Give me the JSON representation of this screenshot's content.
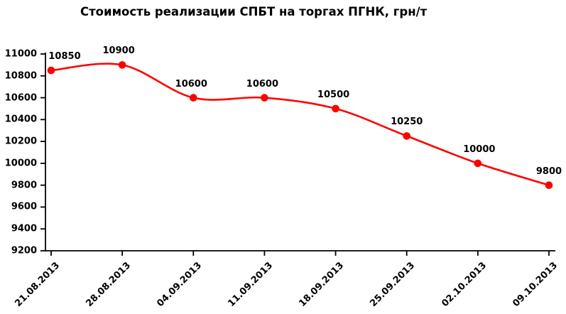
{
  "page": {
    "background": "#FFFFFF"
  },
  "chart_data": {
    "type": "line",
    "title": "Стоимость реализации СПБТ на торгах ПГНК, грн/т",
    "categories": [
      "21.08.2013",
      "28.08.2013",
      "04.09.2013",
      "11.09.2013",
      "18.09.2013",
      "25.09.2013",
      "02.10.2013",
      "09.10.2013"
    ],
    "series": [
      {
        "name": "СПБТ",
        "values": [
          10850,
          10900,
          10600,
          10600,
          10500,
          10250,
          10000,
          9800
        ],
        "color": "#FF0000"
      }
    ],
    "data_labels": [
      "10850",
      "10900",
      "10600",
      "10600",
      "10500",
      "10250",
      "10000",
      "9800"
    ],
    "yticks": [
      9200,
      9400,
      9600,
      9800,
      10000,
      10200,
      10400,
      10600,
      10800,
      11000
    ],
    "ylim": [
      9200,
      11000
    ],
    "xlabel": "",
    "ylabel": "",
    "grid": false,
    "legend": "none",
    "smoothed": true,
    "marker": "circle",
    "axis_color": "#000000",
    "text_color": "#000000",
    "background_color": "#FFFFFF"
  }
}
